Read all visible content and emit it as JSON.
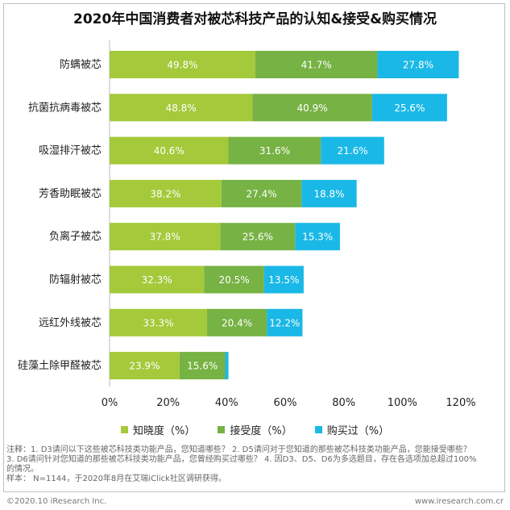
{
  "chart_data": {
    "type": "bar",
    "orientation": "horizontal",
    "stacked": true,
    "title": "2020年中国消费者对被芯科技产品的认知&接受&购买情况",
    "categories": [
      "防螨被芯",
      "抗菌抗病毒被芯",
      "吸湿排汗被芯",
      "芳香助眠被芯",
      "负离子被芯",
      "防辐射被芯",
      "远红外线被芯",
      "硅藻土除甲醛被芯"
    ],
    "series": [
      {
        "name": "知晓度（%）",
        "color": "#a4c93a",
        "values": [
          49.8,
          48.8,
          40.6,
          38.2,
          37.8,
          32.3,
          33.3,
          23.9
        ],
        "labels": [
          "49.8%",
          "48.8%",
          "40.6%",
          "38.2%",
          "37.8%",
          "32.3%",
          "33.3%",
          "23.9%"
        ]
      },
      {
        "name": "接受度（%）",
        "color": "#77b244",
        "values": [
          41.7,
          40.9,
          31.6,
          27.4,
          25.6,
          20.5,
          20.4,
          15.6
        ],
        "labels": [
          "41.7%",
          "40.9%",
          "31.6%",
          "27.4%",
          "25.6%",
          "20.5%",
          "20.4%",
          "15.6%"
        ]
      },
      {
        "name": "购买过（%）",
        "color": "#1ab8e6",
        "values": [
          27.8,
          25.6,
          21.6,
          18.8,
          15.3,
          13.5,
          12.2,
          1.1
        ],
        "labels": [
          "27.8%",
          "25.6%",
          "21.6%",
          "18.8%",
          "15.3%",
          "13.5%",
          "12.2%",
          ""
        ]
      }
    ],
    "xlim": [
      0,
      120
    ],
    "ticks": [
      0,
      20,
      40,
      60,
      80,
      100,
      120
    ],
    "tick_labels": [
      "0%",
      "20%",
      "40%",
      "60%",
      "80%",
      "100%",
      "120%"
    ],
    "grid": false,
    "legend_position": "bottom"
  },
  "notes": {
    "line1": "注释：1. D3请问以下这些被芯科技类功能产品，您知道哪些？ 2. D5请问对于您知道的那些被芯科技类功能产品，您能接受哪些？",
    "line2": "3. D6请问针对您知道的那些被芯科技类功能产品，您曾经购买过哪些？ 4. 因D3、D5、D6为多选题目，存在各选项加总超过100%",
    "line3": "的情况。",
    "line4": "样本： N=1144，于2020年8月在艾瑞iClick社区调研获得。"
  },
  "footer": {
    "copyright": "©2020.10 iResearch Inc.",
    "website": "www.iresearch.com.cr"
  }
}
